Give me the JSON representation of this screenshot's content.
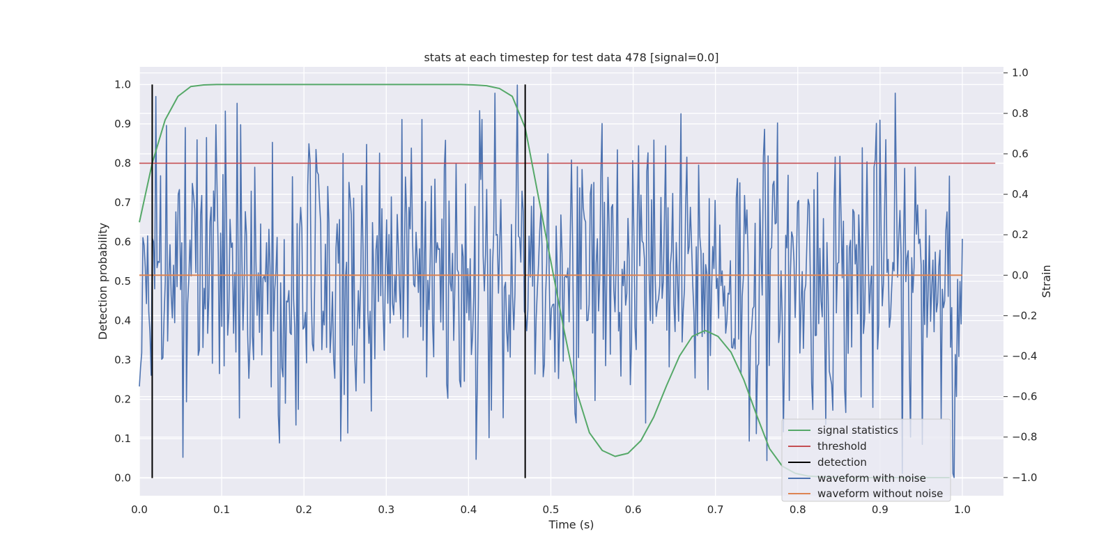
{
  "chart_data": {
    "type": "line",
    "title": "stats at each timestep for test data 478 [signal=0.0]",
    "xlabel": "Time (s)",
    "ylabel": "Detection probability",
    "ylabel_right": "Strain",
    "xlim": [
      0.0,
      1.05
    ],
    "ylim": [
      -0.045,
      1.045
    ],
    "ylim_right": [
      -1.09,
      1.03
    ],
    "x_ticks": [
      "0.0",
      "0.1",
      "0.2",
      "0.3",
      "0.4",
      "0.5",
      "0.6",
      "0.7",
      "0.8",
      "0.9",
      "1.0"
    ],
    "y_ticks": [
      "0.0",
      "0.1",
      "0.2",
      "0.3",
      "0.4",
      "0.5",
      "0.6",
      "0.7",
      "0.8",
      "0.9",
      "1.0"
    ],
    "y_right_ticks": [
      "−1.0",
      "−0.8",
      "−0.6",
      "−0.4",
      "−0.2",
      "0.0",
      "0.2",
      "0.4",
      "0.6",
      "0.8",
      "1.0"
    ],
    "grid": true,
    "legend_position": "lower-right",
    "colors": {
      "background": "#eaeaf2",
      "grid": "#ffffff",
      "signal_statistics": "#55a868",
      "threshold": "#c44e52",
      "detection": "#000000",
      "waveform_with_noise": "#4c72b0",
      "waveform_without_noise": "#dd8452"
    },
    "series": [
      {
        "name": "signal statistics",
        "axis": "left",
        "x": [
          0.0,
          0.0156,
          0.0313,
          0.0469,
          0.0625,
          0.0781,
          0.0938,
          0.1094,
          0.125,
          0.1563,
          0.2,
          0.25,
          0.3,
          0.35,
          0.3906,
          0.4063,
          0.4219,
          0.4375,
          0.4531,
          0.4688,
          0.4844,
          0.5,
          0.5156,
          0.5313,
          0.5469,
          0.5625,
          0.5781,
          0.5938,
          0.6094,
          0.625,
          0.6406,
          0.6563,
          0.6719,
          0.6875,
          0.7031,
          0.7188,
          0.7344,
          0.75,
          0.7656,
          0.7813,
          0.7969,
          0.8125,
          0.8281,
          0.8438,
          0.8594,
          0.875,
          0.8906,
          0.9063,
          0.9219,
          0.9375,
          0.9531,
          0.9688,
          0.9844
        ],
        "values": [
          0.65,
          0.8,
          0.91,
          0.97,
          0.995,
          0.999,
          1.0,
          1.0,
          1.0,
          1.0,
          1.0,
          1.0,
          1.0,
          1.0,
          1.0,
          0.999,
          0.997,
          0.99,
          0.97,
          0.89,
          0.72,
          0.55,
          0.38,
          0.22,
          0.115,
          0.07,
          0.055,
          0.063,
          0.095,
          0.155,
          0.235,
          0.31,
          0.36,
          0.375,
          0.36,
          0.32,
          0.25,
          0.16,
          0.075,
          0.03,
          0.012,
          0.005,
          0.003,
          0.002,
          0.002,
          0.001,
          0.001,
          0.001,
          0.001,
          0.001,
          0.001,
          0.001,
          0.001
        ]
      },
      {
        "name": "threshold",
        "axis": "left",
        "x": [
          0.0,
          1.04
        ],
        "values": [
          0.8,
          0.8
        ]
      },
      {
        "name": "detection",
        "axis": "left",
        "segments": [
          {
            "x": 0.0156,
            "y": [
              0.0,
              1.0
            ]
          },
          {
            "x": 0.4688,
            "y": [
              0.0,
              1.0
            ]
          }
        ]
      },
      {
        "name": "waveform with noise",
        "axis": "right",
        "x_range": [
          0.0,
          1.0
        ],
        "n_points": 700,
        "noise_std": 0.35,
        "peaks": [
          {
            "x": 0.0,
            "y": -0.55
          },
          {
            "x": 0.0469,
            "y": 0.4
          },
          {
            "x": 0.0531,
            "y": -0.9
          },
          {
            "x": 0.0563,
            "y": 0.73
          },
          {
            "x": 0.1188,
            "y": 0.85
          },
          {
            "x": 0.1297,
            "y": 0.2
          },
          {
            "x": 0.2063,
            "y": 0.65
          },
          {
            "x": 0.2531,
            "y": -0.78
          },
          {
            "x": 0.3188,
            "y": 0.77
          },
          {
            "x": 0.3438,
            "y": 0.77
          },
          {
            "x": 0.3844,
            "y": 0.55
          },
          {
            "x": 0.4094,
            "y": -0.91
          },
          {
            "x": 0.4156,
            "y": 0.77
          },
          {
            "x": 0.4594,
            "y": 0.94
          },
          {
            "x": 0.4969,
            "y": 0.6
          },
          {
            "x": 0.5313,
            "y": -0.73
          },
          {
            "x": 0.5813,
            "y": 0.62
          },
          {
            "x": 0.6063,
            "y": 0.64
          },
          {
            "x": 0.7406,
            "y": -0.82
          },
          {
            "x": 0.8781,
            "y": 0.63
          },
          {
            "x": 0.9063,
            "y": 0.67
          },
          {
            "x": 0.9375,
            "y": -0.8
          },
          {
            "x": 0.9844,
            "y": 0.49
          },
          {
            "x": 0.9906,
            "y": -1.0
          },
          {
            "x": 1.0,
            "y": 0.18
          }
        ]
      },
      {
        "name": "waveform without noise",
        "axis": "right",
        "x": [
          0.0,
          1.0
        ],
        "values": [
          0.0,
          0.0
        ]
      }
    ]
  }
}
